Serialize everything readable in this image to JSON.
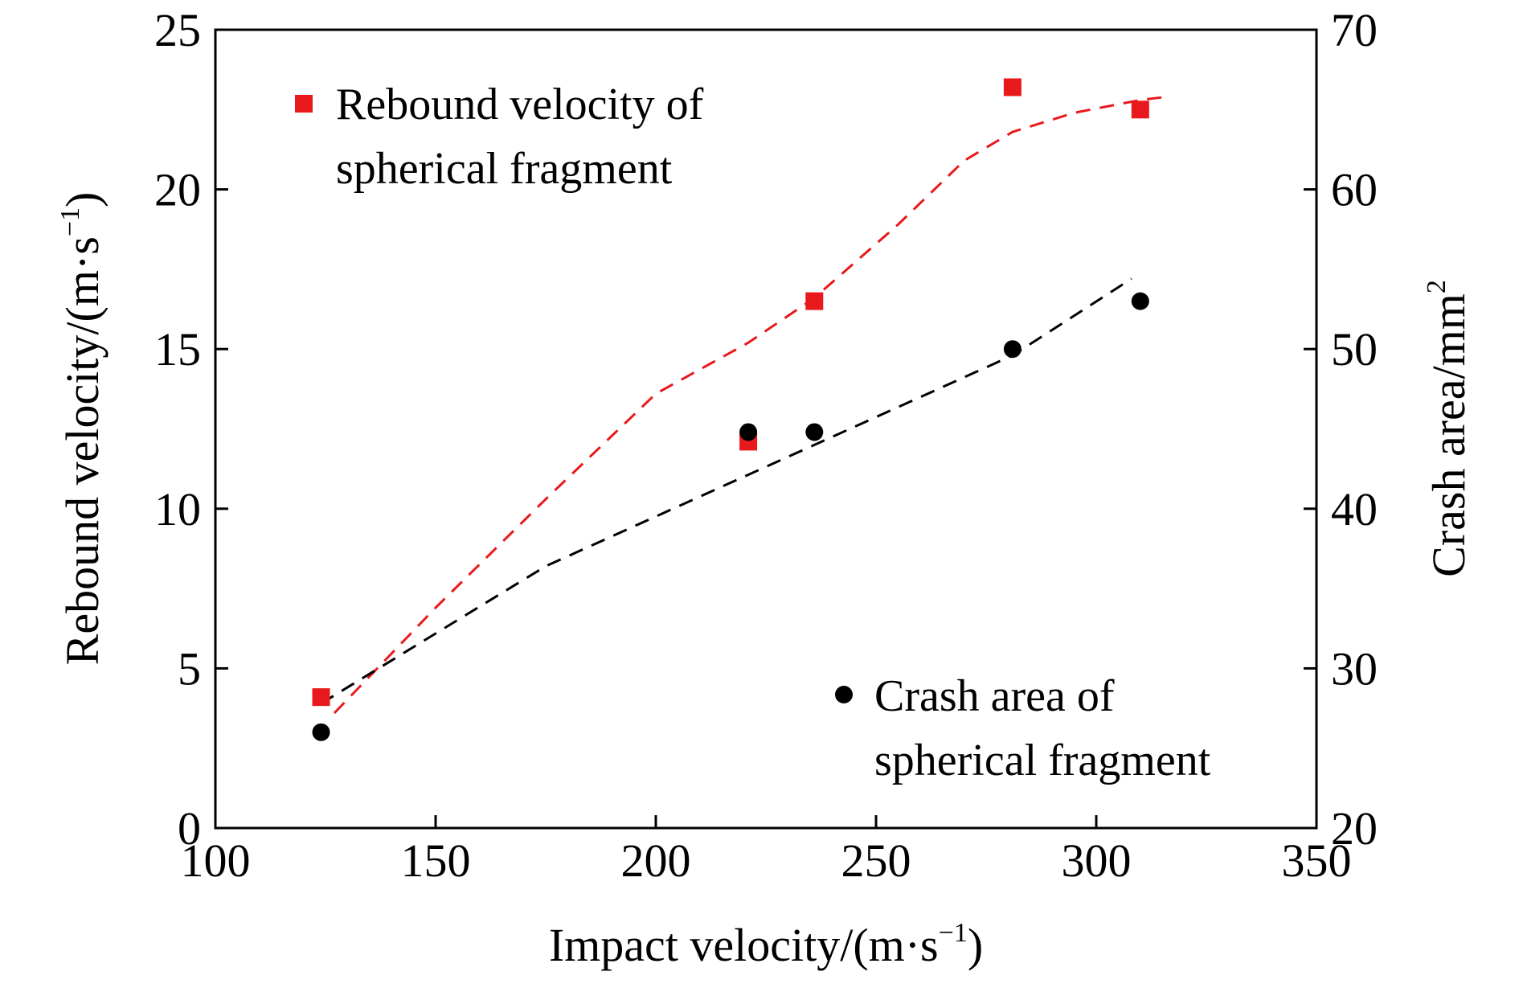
{
  "chart_data": {
    "type": "scatter",
    "title": "",
    "xlabel": {
      "main": "Impact velocity/(m·s",
      "sup": "−1",
      "tail": ")"
    },
    "ylabel_left": {
      "main": "Rebound velocity/(m·s",
      "sup": "−1",
      "tail": ")"
    },
    "ylabel_right": {
      "main": "Crash area/mm",
      "sup": "2",
      "tail": ""
    },
    "xlim": [
      100,
      350
    ],
    "ylim_left": [
      0,
      25
    ],
    "ylim_right": [
      20,
      70
    ],
    "x_ticks": [
      100,
      150,
      200,
      250,
      300,
      350
    ],
    "y_left_ticks": [
      0,
      5,
      10,
      15,
      20,
      25
    ],
    "y_right_ticks": [
      20,
      30,
      40,
      50,
      60,
      70
    ],
    "grid": false,
    "series": [
      {
        "name": "Rebound velocity of spherical fragment",
        "legend_lines": [
          "Rebound velocity of",
          "spherical fragment"
        ],
        "axis": "left",
        "marker": "square",
        "color": "#e8191c",
        "legend_position": "top-left",
        "x": [
          124,
          221,
          236,
          281,
          310
        ],
        "y": [
          4.1,
          12.1,
          16.5,
          23.2,
          22.5
        ],
        "fit": {
          "x": [
            127,
            150,
            175,
            200,
            221,
            236,
            255,
            270,
            281,
            295,
            310,
            316
          ],
          "y": [
            3.6,
            6.9,
            10.3,
            13.6,
            15.2,
            16.6,
            18.9,
            20.9,
            21.8,
            22.4,
            22.8,
            22.9
          ]
        }
      },
      {
        "name": "Crash area of spherical fragment",
        "legend_lines": [
          "Crash area of",
          "spherical fragment"
        ],
        "axis": "right",
        "marker": "circle",
        "color": "#000000",
        "legend_position": "bottom-right",
        "x": [
          124,
          221,
          236,
          281,
          310
        ],
        "y": [
          26.0,
          44.8,
          44.8,
          50.0,
          53.0
        ],
        "fit": {
          "x": [
            124,
            175,
            236,
            281,
            308
          ],
          "y": [
            27.8,
            36.4,
            44.0,
            49.6,
            54.4
          ]
        }
      }
    ]
  }
}
